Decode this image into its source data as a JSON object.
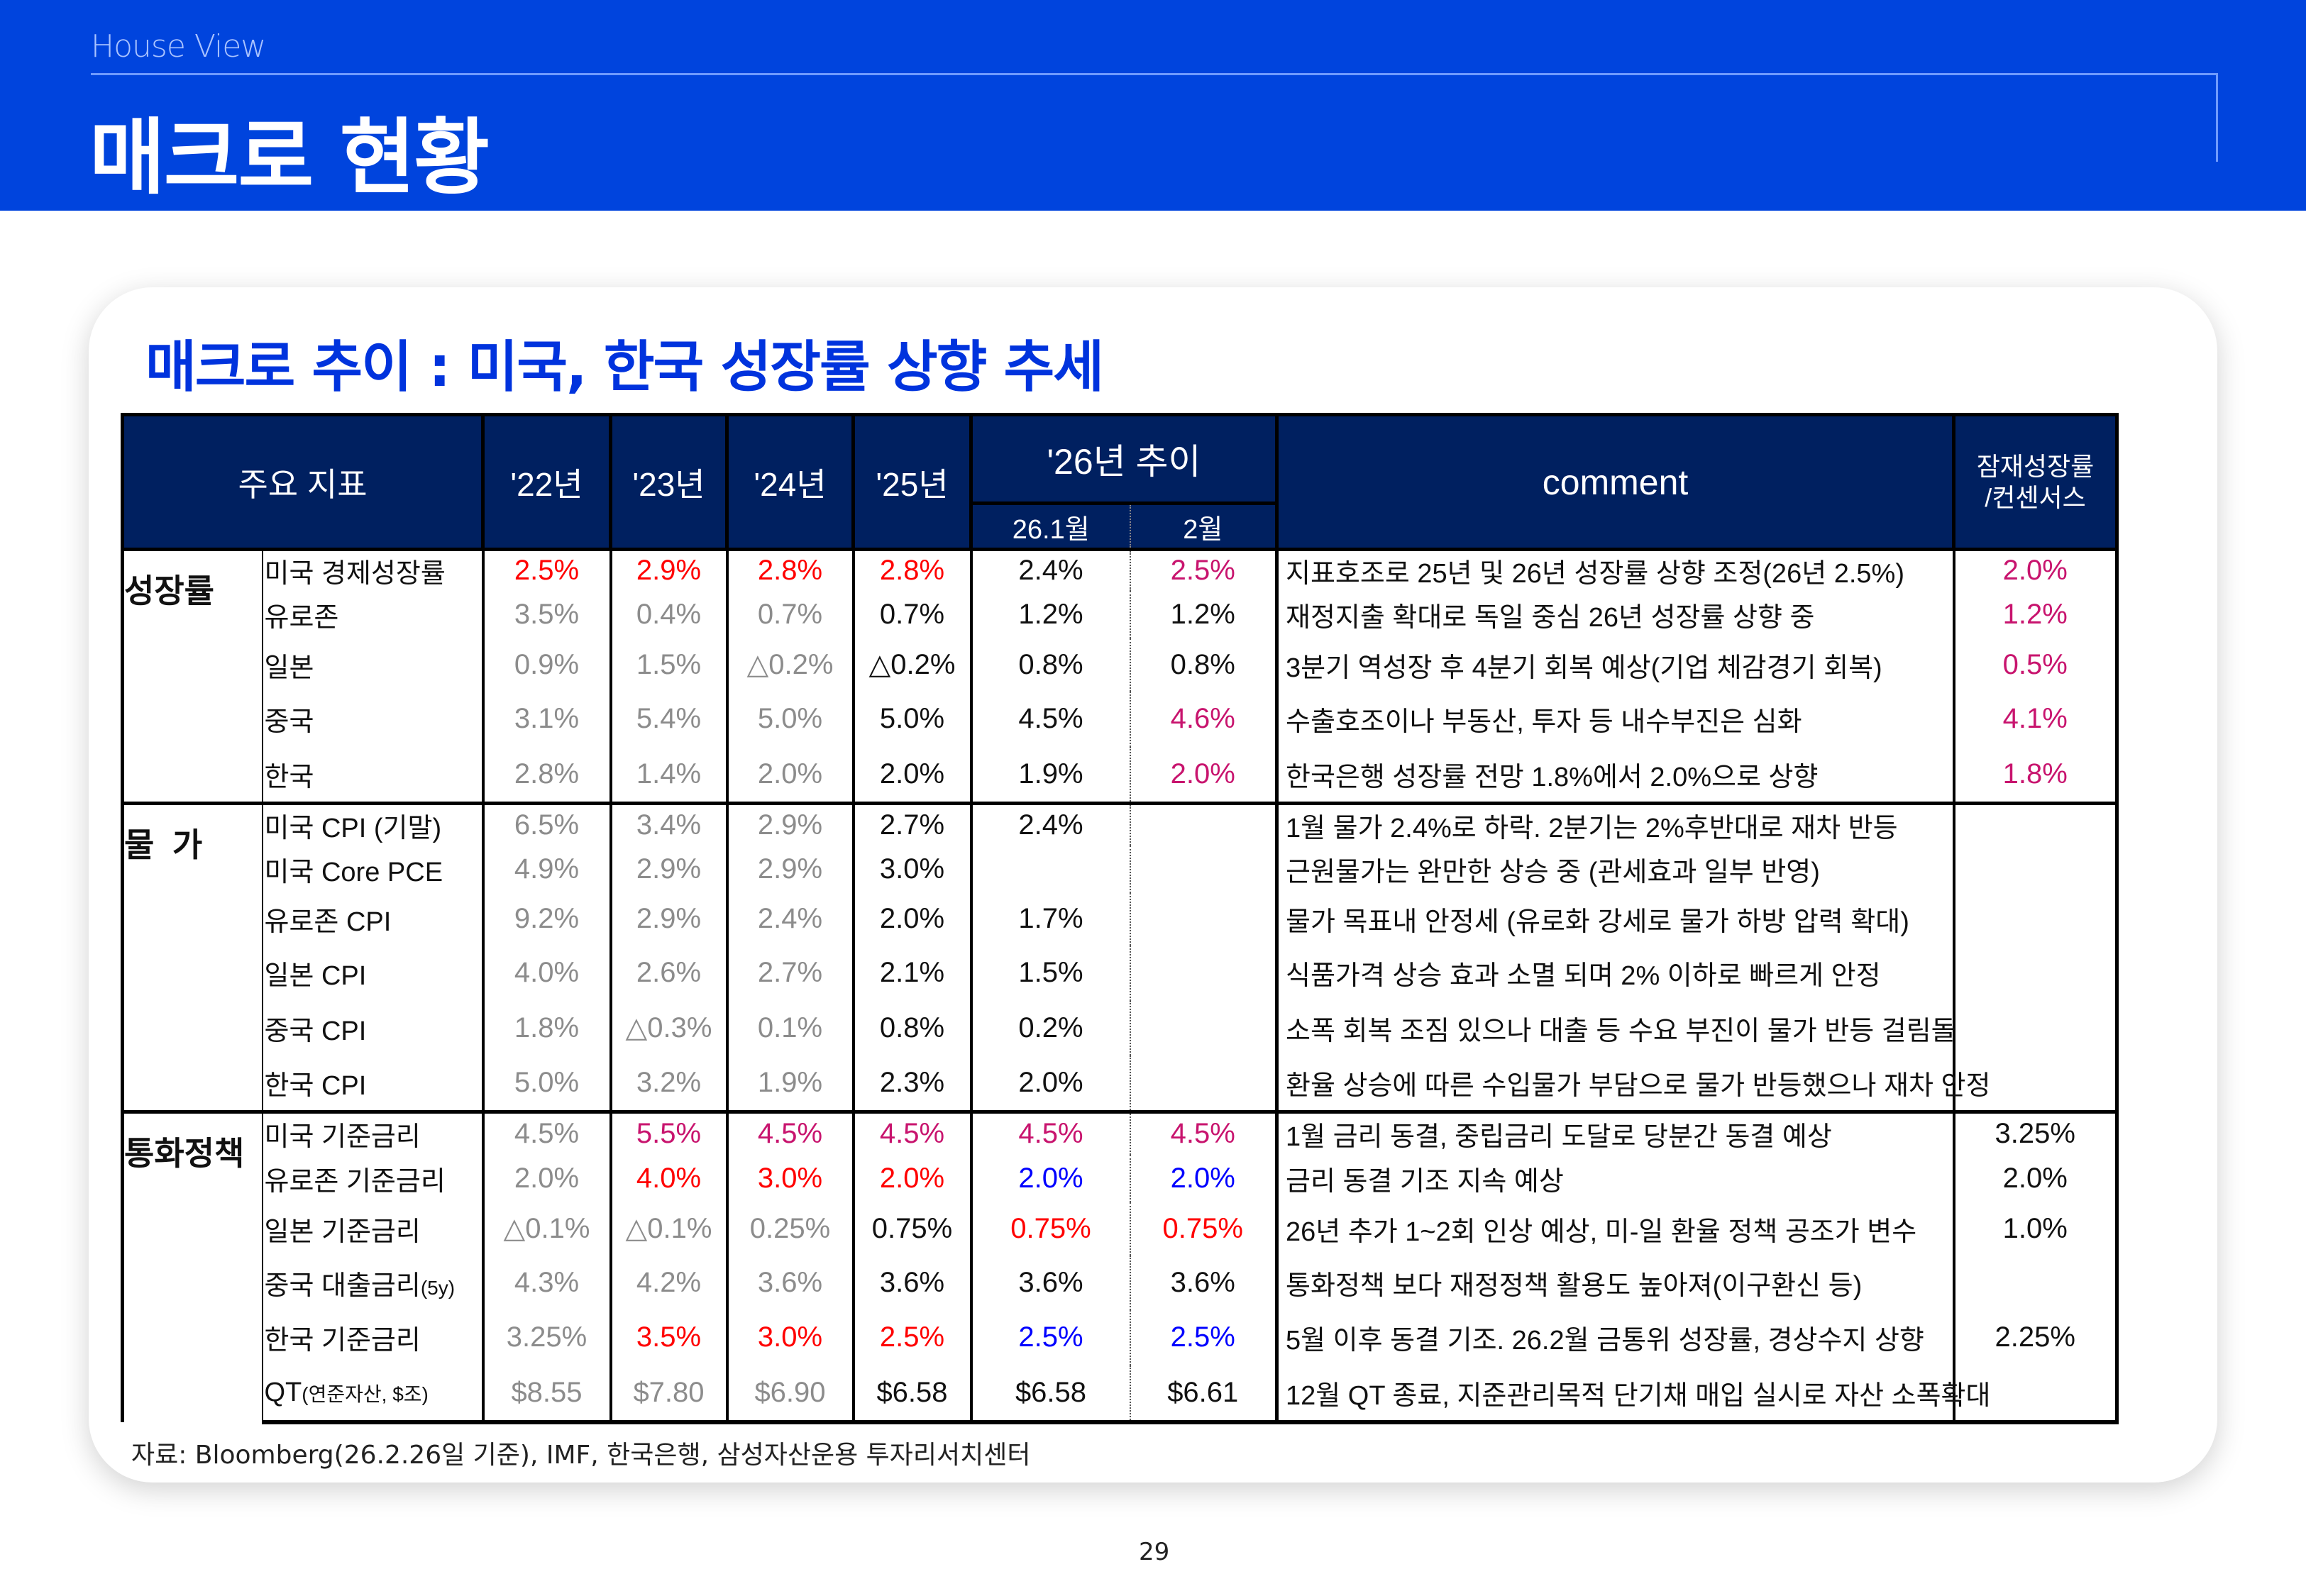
{
  "header": {
    "section": "House View",
    "title": "매크로 현황"
  },
  "card": {
    "title": "매크로 추이 : 미국, 한국 성장률 상향 추세"
  },
  "colors": {
    "r": "#ff0000",
    "m": "#c8146e",
    "b": "#0000ff",
    "g": "#8c8c8c",
    "k": "#111111",
    "header_bg": "#002060",
    "band": "#0044dd",
    "title_blue": "#0033dd"
  },
  "table": {
    "headers": {
      "indicator": "주요 지표",
      "y22": "'22년",
      "y23": "'23년",
      "y24": "'24년",
      "y25": "'25년",
      "trend26": "'26년 추이",
      "m1": "26.1월",
      "m2": "2월",
      "comment": "comment",
      "consensus": "잠재성장률\n/컨센서스"
    },
    "sections": [
      {
        "category": "성장률",
        "rows": [
          {
            "label": "미국 경제성장률",
            "label_small": "",
            "values": [
              "2.5%",
              "2.9%",
              "2.8%",
              "2.8%",
              "2.4%",
              "2.5%"
            ],
            "colors": [
              "r",
              "r",
              "r",
              "r",
              "k",
              "m"
            ],
            "comment": "지표호조로 25년 및 26년 성장률 상향 조정(26년 2.5%)",
            "consensus": "2.0%",
            "consensus_color": "m"
          },
          {
            "label": "유로존",
            "label_small": "",
            "values": [
              "3.5%",
              "0.4%",
              "0.7%",
              "0.7%",
              "1.2%",
              "1.2%"
            ],
            "colors": [
              "g",
              "g",
              "g",
              "k",
              "k",
              "k"
            ],
            "comment": "재정지출 확대로 독일 중심 26년 성장률 상향 중",
            "consensus": "1.2%",
            "consensus_color": "m"
          },
          {
            "label": "일본",
            "label_small": "",
            "values": [
              "0.9%",
              "1.5%",
              "△0.2%",
              "△0.2%",
              "0.8%",
              "0.8%"
            ],
            "colors": [
              "g",
              "g",
              "g",
              "k",
              "k",
              "k"
            ],
            "comment": "3분기 역성장 후 4분기 회복 예상(기업 체감경기 회복)",
            "consensus": "0.5%",
            "consensus_color": "m"
          },
          {
            "label": "중국",
            "label_small": "",
            "values": [
              "3.1%",
              "5.4%",
              "5.0%",
              "5.0%",
              "4.5%",
              "4.6%"
            ],
            "colors": [
              "g",
              "g",
              "g",
              "k",
              "k",
              "m"
            ],
            "comment": "수출호조이나 부동산, 투자 등 내수부진은 심화",
            "consensus": "4.1%",
            "consensus_color": "m"
          },
          {
            "label": "한국",
            "label_small": "",
            "values": [
              "2.8%",
              "1.4%",
              "2.0%",
              "2.0%",
              "1.9%",
              "2.0%"
            ],
            "colors": [
              "g",
              "g",
              "g",
              "k",
              "k",
              "m"
            ],
            "comment": "한국은행 성장률 전망 1.8%에서 2.0%으로 상향",
            "consensus": "1.8%",
            "consensus_color": "m"
          }
        ]
      },
      {
        "category": "물  가",
        "rows": [
          {
            "label": "미국 CPI (기말)",
            "label_small": "",
            "values": [
              "6.5%",
              "3.4%",
              "2.9%",
              "2.7%",
              "2.4%",
              ""
            ],
            "colors": [
              "g",
              "g",
              "g",
              "k",
              "k",
              "k"
            ],
            "comment": "1월 물가 2.4%로 하락. 2분기는 2%후반대로 재차 반등",
            "consensus": "",
            "consensus_color": "k"
          },
          {
            "label": "미국 Core PCE",
            "label_small": "",
            "values": [
              "4.9%",
              "2.9%",
              "2.9%",
              "3.0%",
              "",
              ""
            ],
            "colors": [
              "g",
              "g",
              "g",
              "k",
              "k",
              "k"
            ],
            "comment": "근원물가는 완만한 상승 중 (관세효과 일부 반영)",
            "consensus": "",
            "consensus_color": "k"
          },
          {
            "label": "유로존 CPI",
            "label_small": "",
            "values": [
              "9.2%",
              "2.9%",
              "2.4%",
              "2.0%",
              "1.7%",
              ""
            ],
            "colors": [
              "g",
              "g",
              "g",
              "k",
              "k",
              "k"
            ],
            "comment": "물가 목표내 안정세 (유로화 강세로 물가 하방 압력 확대)",
            "consensus": "",
            "consensus_color": "k"
          },
          {
            "label": "일본 CPI",
            "label_small": "",
            "values": [
              "4.0%",
              "2.6%",
              "2.7%",
              "2.1%",
              "1.5%",
              ""
            ],
            "colors": [
              "g",
              "g",
              "g",
              "k",
              "k",
              "k"
            ],
            "comment": "식품가격 상승 효과 소멸 되며 2% 이하로 빠르게 안정",
            "consensus": "",
            "consensus_color": "k"
          },
          {
            "label": "중국 CPI",
            "label_small": "",
            "values": [
              "1.8%",
              "△0.3%",
              "0.1%",
              "0.8%",
              "0.2%",
              ""
            ],
            "colors": [
              "g",
              "g",
              "g",
              "k",
              "k",
              "k"
            ],
            "comment": "소폭 회복 조짐 있으나 대출 등 수요 부진이 물가 반등 걸림돌",
            "consensus": "",
            "consensus_color": "k"
          },
          {
            "label": "한국 CPI",
            "label_small": "",
            "values": [
              "5.0%",
              "3.2%",
              "1.9%",
              "2.3%",
              "2.0%",
              ""
            ],
            "colors": [
              "g",
              "g",
              "g",
              "k",
              "k",
              "k"
            ],
            "comment": "환율 상승에 따른 수입물가 부담으로 물가 반등했으나 재차 안정",
            "consensus": "",
            "consensus_color": "k"
          }
        ]
      },
      {
        "category": "통화정책",
        "rows": [
          {
            "label": "미국 기준금리",
            "label_small": "",
            "values": [
              "4.5%",
              "5.5%",
              "4.5%",
              "4.5%",
              "4.5%",
              "4.5%"
            ],
            "colors": [
              "g",
              "m",
              "m",
              "m",
              "m",
              "m"
            ],
            "comment": "1월 금리 동결, 중립금리 도달로 당분간 동결 예상",
            "consensus": "3.25%",
            "consensus_color": "k"
          },
          {
            "label": "유로존 기준금리",
            "label_small": "",
            "values": [
              "2.0%",
              "4.0%",
              "3.0%",
              "2.0%",
              "2.0%",
              "2.0%"
            ],
            "colors": [
              "g",
              "r",
              "r",
              "r",
              "b",
              "b"
            ],
            "comment": "금리 동결 기조 지속 예상",
            "consensus": "2.0%",
            "consensus_color": "k"
          },
          {
            "label": "일본 기준금리",
            "label_small": "",
            "values": [
              "△0.1%",
              "△0.1%",
              "0.25%",
              "0.75%",
              "0.75%",
              "0.75%"
            ],
            "colors": [
              "g",
              "g",
              "g",
              "k",
              "r",
              "r"
            ],
            "comment": "26년 추가 1~2회 인상 예상, 미-일 환율 정책 공조가 변수",
            "consensus": "1.0%",
            "consensus_color": "k"
          },
          {
            "label": "중국 대출금리",
            "label_small": "(5y)",
            "values": [
              "4.3%",
              "4.2%",
              "3.6%",
              "3.6%",
              "3.6%",
              "3.6%"
            ],
            "colors": [
              "g",
              "g",
              "g",
              "k",
              "k",
              "k"
            ],
            "comment": "통화정책 보다 재정정책 활용도 높아져(이구환신 등)",
            "consensus": "",
            "consensus_color": "k"
          },
          {
            "label": "한국 기준금리",
            "label_small": "",
            "values": [
              "3.25%",
              "3.5%",
              "3.0%",
              "2.5%",
              "2.5%",
              "2.5%"
            ],
            "colors": [
              "g",
              "r",
              "r",
              "r",
              "b",
              "b"
            ],
            "comment": "5월 이후 동결 기조. 26.2월 금통위 성장률, 경상수지 상향",
            "consensus": "2.25%",
            "consensus_color": "k"
          },
          {
            "label": "QT",
            "label_small": "(연준자산, $조)",
            "values": [
              "$8.55",
              "$7.80",
              "$6.90",
              "$6.58",
              "$6.58",
              "$6.61"
            ],
            "colors": [
              "g",
              "g",
              "g",
              "k",
              "k",
              "k"
            ],
            "comment": "12월 QT 종료, 지준관리목적 단기채 매입 실시로 자산 소폭확대",
            "consensus": "",
            "consensus_color": "k"
          }
        ]
      }
    ]
  },
  "footer": {
    "source": "자료: Bloomberg(26.2.26일 기준), IMF, 한국은행, 삼성자산운용 투자리서치센터",
    "page": "29"
  }
}
